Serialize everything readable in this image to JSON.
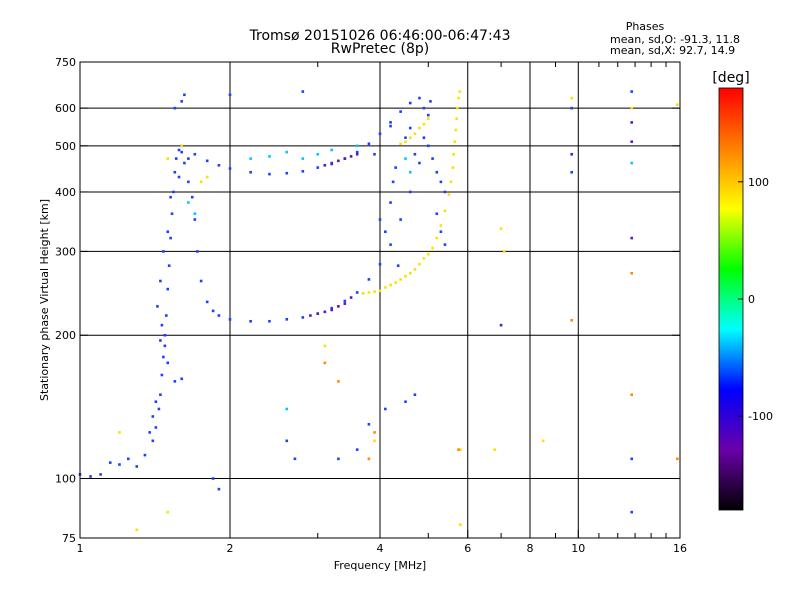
{
  "chart_data": {
    "type": "scatter",
    "title": "Tromsø 20151026 06:46:00-06:47:43",
    "subtitle": "RwPretec (8p)",
    "xlabel": "Frequency [MHz]",
    "ylabel": "Stationary phase Virtual Height [km]",
    "x_scale": "log",
    "y_scale": "log",
    "xlim": [
      1,
      16
    ],
    "ylim": [
      75,
      750
    ],
    "x_ticks": [
      1,
      2,
      4,
      6,
      8,
      10,
      16
    ],
    "x_tick_labels": [
      "1",
      "2",
      "4",
      "6",
      "8",
      "10",
      "16"
    ],
    "y_ticks": [
      75,
      100,
      200,
      300,
      400,
      500,
      600,
      750
    ],
    "y_tick_labels": [
      "75",
      "100",
      "200",
      "300",
      "400",
      "500",
      "600",
      "750"
    ],
    "x_gridlines": [
      2,
      4,
      6,
      8,
      10
    ],
    "y_gridlines": [
      100,
      200,
      300,
      400,
      500,
      600
    ],
    "grid": true,
    "legend": {
      "title": "Phases",
      "position": "top-right",
      "lines": [
        "mean, sd,O: -91.3, 11.8",
        "mean, sd,X:  92.7, 14.9"
      ]
    },
    "colorbar": {
      "label": "[deg]",
      "range": [
        -180,
        180
      ],
      "ticks": [
        100,
        0,
        -100
      ],
      "tick_labels": [
        "100",
        "0",
        "-100"
      ],
      "colormap": [
        "#000000",
        "#6a00a8",
        "#0000ff",
        "#00ffff",
        "#00ff00",
        "#ffff00",
        "#ff8000",
        "#ff0000"
      ]
    },
    "series": [
      {
        "phase": -100,
        "color": "#1f3fff",
        "points": [
          [
            1.0,
            102
          ],
          [
            1.05,
            101
          ],
          [
            1.1,
            102
          ],
          [
            1.15,
            108
          ],
          [
            1.2,
            107
          ],
          [
            1.25,
            110
          ],
          [
            1.3,
            106
          ],
          [
            1.35,
            112
          ],
          [
            1.4,
            120
          ],
          [
            1.42,
            128
          ],
          [
            1.44,
            140
          ],
          [
            1.45,
            150
          ],
          [
            1.46,
            165
          ],
          [
            1.47,
            180
          ],
          [
            1.48,
            200
          ],
          [
            1.49,
            220
          ],
          [
            1.5,
            250
          ],
          [
            1.51,
            280
          ],
          [
            1.52,
            320
          ],
          [
            1.53,
            360
          ],
          [
            1.54,
            400
          ],
          [
            1.55,
            440
          ],
          [
            1.56,
            470
          ],
          [
            1.58,
            490
          ],
          [
            1.6,
            485
          ],
          [
            1.62,
            460
          ],
          [
            1.65,
            420
          ],
          [
            1.68,
            390
          ],
          [
            1.7,
            350
          ],
          [
            1.72,
            300
          ],
          [
            1.75,
            260
          ],
          [
            1.8,
            235
          ],
          [
            1.85,
            225
          ],
          [
            1.9,
            220
          ],
          [
            2.0,
            216
          ],
          [
            2.2,
            214
          ],
          [
            2.4,
            214
          ],
          [
            2.6,
            216
          ],
          [
            2.8,
            218
          ],
          [
            3.0,
            222
          ],
          [
            3.2,
            228
          ],
          [
            3.4,
            236
          ],
          [
            3.6,
            246
          ],
          [
            3.8,
            262
          ],
          [
            4.0,
            282
          ],
          [
            4.2,
            310
          ],
          [
            4.4,
            350
          ],
          [
            4.6,
            400
          ],
          [
            4.8,
            460
          ],
          [
            4.9,
            520
          ],
          [
            5.0,
            580
          ],
          [
            5.05,
            620
          ],
          [
            1.6,
            500
          ],
          [
            1.7,
            480
          ],
          [
            1.8,
            465
          ],
          [
            1.9,
            455
          ],
          [
            2.0,
            448
          ],
          [
            2.2,
            440
          ],
          [
            2.4,
            436
          ],
          [
            2.6,
            438
          ],
          [
            2.8,
            442
          ],
          [
            3.0,
            450
          ],
          [
            3.2,
            460
          ],
          [
            3.4,
            470
          ],
          [
            3.6,
            485
          ],
          [
            3.8,
            505
          ],
          [
            4.0,
            530
          ],
          [
            4.2,
            560
          ],
          [
            4.4,
            590
          ],
          [
            4.6,
            615
          ],
          [
            4.8,
            630
          ],
          [
            1.62,
            640
          ],
          [
            1.6,
            620
          ],
          [
            1.55,
            600
          ],
          [
            1.65,
            470
          ],
          [
            1.58,
            430
          ],
          [
            1.52,
            390
          ],
          [
            1.5,
            330
          ],
          [
            1.47,
            300
          ],
          [
            1.45,
            260
          ],
          [
            1.43,
            230
          ],
          [
            1.46,
            210
          ],
          [
            1.48,
            190
          ],
          [
            1.5,
            175
          ],
          [
            1.55,
            160
          ],
          [
            1.6,
            162
          ],
          [
            1.45,
            195
          ],
          [
            1.42,
            145
          ],
          [
            1.4,
            135
          ],
          [
            1.38,
            125
          ],
          [
            2.6,
            120
          ],
          [
            2.7,
            110
          ],
          [
            1.85,
            100
          ],
          [
            1.9,
            95
          ],
          [
            3.3,
            110
          ],
          [
            3.6,
            115
          ],
          [
            3.8,
            130
          ],
          [
            4.1,
            140
          ],
          [
            4.5,
            145
          ],
          [
            4.7,
            150
          ],
          [
            4.2,
            380
          ],
          [
            4.25,
            420
          ],
          [
            4.3,
            450
          ],
          [
            4.0,
            350
          ],
          [
            4.1,
            330
          ],
          [
            4.35,
            280
          ],
          [
            4.5,
            520
          ],
          [
            4.6,
            545
          ],
          [
            4.9,
            600
          ],
          [
            5.0,
            500
          ],
          [
            5.1,
            470
          ],
          [
            5.2,
            440
          ],
          [
            5.3,
            420
          ],
          [
            5.4,
            400
          ],
          [
            5.2,
            360
          ],
          [
            5.3,
            330
          ],
          [
            5.4,
            310
          ],
          [
            2.0,
            640
          ],
          [
            2.8,
            650
          ],
          [
            9.7,
            600
          ],
          [
            9.7,
            440
          ],
          [
            4.2,
            550
          ],
          [
            3.9,
            480
          ],
          [
            4.7,
            480
          ],
          [
            12.8,
            650
          ],
          [
            12.8,
            110
          ],
          [
            12.8,
            85
          ]
        ]
      },
      {
        "phase": -120,
        "color": "#5a1ab8",
        "points": [
          [
            2.9,
            220
          ],
          [
            3.0,
            222
          ],
          [
            3.1,
            224
          ],
          [
            3.2,
            226
          ],
          [
            3.3,
            230
          ],
          [
            3.4,
            233
          ],
          [
            3.5,
            240
          ],
          [
            3.3,
            465
          ],
          [
            3.4,
            470
          ],
          [
            3.5,
            475
          ],
          [
            3.6,
            480
          ],
          [
            3.2,
            458
          ],
          [
            3.1,
            455
          ],
          [
            7.0,
            210
          ],
          [
            9.7,
            480
          ],
          [
            12.8,
            560
          ],
          [
            12.8,
            510
          ],
          [
            12.8,
            320
          ]
        ]
      },
      {
        "phase": 60,
        "color": "#00c8ff",
        "points": [
          [
            2.6,
            485
          ],
          [
            2.8,
            470
          ],
          [
            3.0,
            480
          ],
          [
            3.2,
            490
          ],
          [
            3.6,
            500
          ],
          [
            2.4,
            475
          ],
          [
            2.2,
            470
          ],
          [
            1.7,
            360
          ],
          [
            1.65,
            380
          ],
          [
            2.6,
            140
          ],
          [
            4.5,
            470
          ],
          [
            4.6,
            440
          ],
          [
            12.8,
            460
          ]
        ]
      },
      {
        "phase": 110,
        "color": "#f5e400",
        "points": [
          [
            3.7,
            245
          ],
          [
            3.8,
            246
          ],
          [
            3.9,
            247
          ],
          [
            4.0,
            248
          ],
          [
            4.1,
            252
          ],
          [
            4.2,
            255
          ],
          [
            4.3,
            258
          ],
          [
            4.4,
            262
          ],
          [
            4.5,
            266
          ],
          [
            4.6,
            270
          ],
          [
            4.7,
            275
          ],
          [
            4.8,
            282
          ],
          [
            4.9,
            290
          ],
          [
            5.0,
            296
          ],
          [
            5.1,
            305
          ],
          [
            5.2,
            320
          ],
          [
            5.3,
            340
          ],
          [
            5.4,
            365
          ],
          [
            5.5,
            395
          ],
          [
            5.55,
            420
          ],
          [
            5.6,
            450
          ],
          [
            5.62,
            480
          ],
          [
            5.65,
            510
          ],
          [
            5.68,
            540
          ],
          [
            5.7,
            570
          ],
          [
            5.72,
            600
          ],
          [
            5.75,
            630
          ],
          [
            5.78,
            650
          ],
          [
            4.6,
            520
          ],
          [
            4.7,
            530
          ],
          [
            4.8,
            545
          ],
          [
            4.9,
            555
          ],
          [
            5.0,
            570
          ],
          [
            4.5,
            510
          ],
          [
            4.4,
            505
          ],
          [
            1.75,
            420
          ],
          [
            1.8,
            430
          ],
          [
            1.6,
            500
          ],
          [
            1.5,
            470
          ],
          [
            1.2,
            125
          ],
          [
            1.3,
            78
          ],
          [
            1.5,
            85
          ],
          [
            7.0,
            335
          ],
          [
            7.1,
            300
          ],
          [
            9.7,
            630
          ],
          [
            12.8,
            600
          ],
          [
            15.8,
            610
          ],
          [
            8.5,
            120
          ],
          [
            6.8,
            115
          ],
          [
            5.8,
            115
          ],
          [
            3.9,
            120
          ],
          [
            3.1,
            190
          ],
          [
            5.8,
            80
          ]
        ]
      },
      {
        "phase": 150,
        "color": "#ff8a00",
        "points": [
          [
            3.1,
            175
          ],
          [
            3.3,
            160
          ],
          [
            3.9,
            125
          ],
          [
            3.8,
            110
          ],
          [
            12.8,
            150
          ],
          [
            9.7,
            215
          ],
          [
            12.8,
            270
          ],
          [
            15.8,
            110
          ],
          [
            5.75,
            115
          ]
        ]
      }
    ]
  }
}
